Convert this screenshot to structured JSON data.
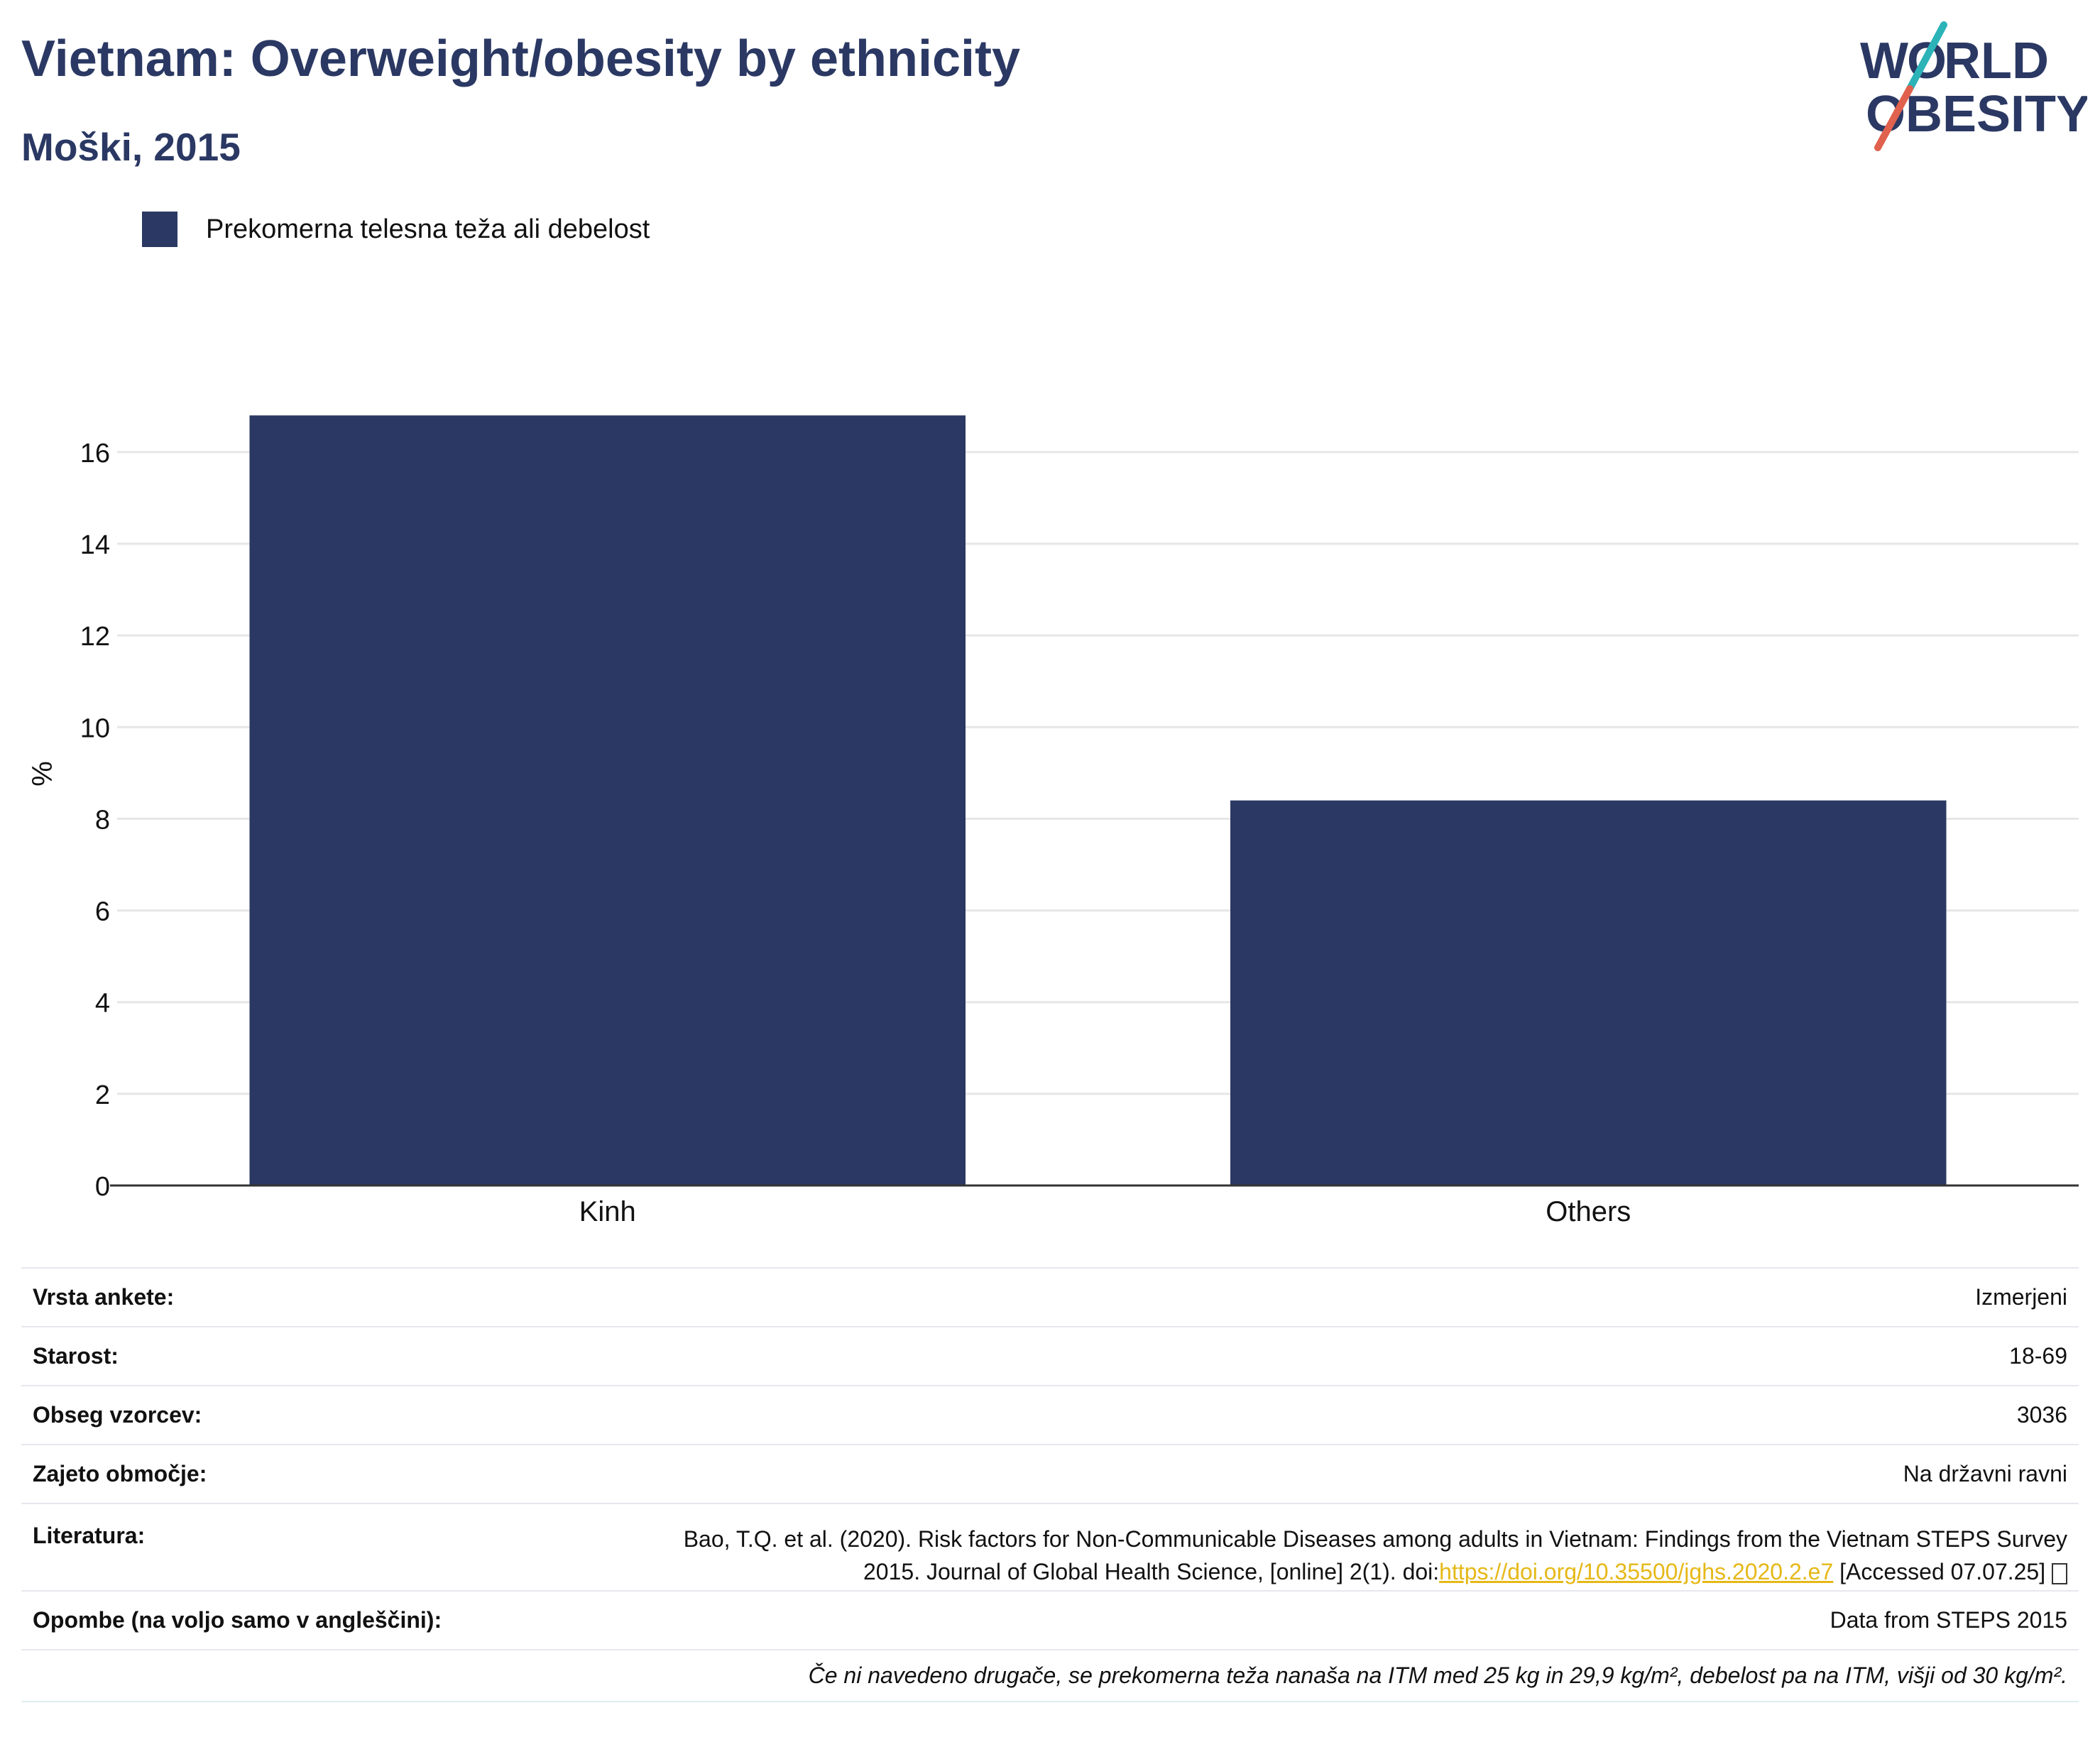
{
  "header": {
    "title": "Vietnam: Overweight/obesity by ethnicity",
    "subtitle": "Moški, 2015",
    "logo_text": "WORLD OBESITY"
  },
  "legend": {
    "label": "Prekomerna telesna teža ali debelost"
  },
  "chart_data": {
    "type": "bar",
    "title": "Vietnam: Overweight/obesity by ethnicity",
    "subtitle": "Moški, 2015",
    "categories": [
      "Kinh",
      "Others"
    ],
    "series": [
      {
        "name": "Prekomerna telesna teža ali debelost",
        "values": [
          16.8,
          8.4
        ]
      }
    ],
    "xlabel": "",
    "ylabel": "%",
    "ylim": [
      0,
      17.5
    ],
    "yticks": [
      0,
      2,
      4,
      6,
      8,
      10,
      12,
      14,
      16
    ],
    "grid": true,
    "legend_position": "top-left",
    "bar_color": "#2a3863"
  },
  "info": {
    "survey_type_label": "Vrsta ankete:",
    "survey_type_value": "Izmerjeni",
    "age_label": "Starost:",
    "age_value": "18-69",
    "sample_label": "Obseg vzorcev:",
    "sample_value": "3036",
    "area_label": "Zajeto območje:",
    "area_value": "Na državni ravni",
    "ref_label": "Literatura:",
    "ref_line1": "Bao, T.Q. et al. (2020). Risk factors for Non-Communicable Diseases among adults in Vietnam: Findings from the Vietnam STEPS Survey",
    "ref_line2_prefix": "2015. Journal of Global Health Science, [online] 2(1). doi:",
    "ref_link": "https://doi.org/10.35500/jghs.2020.2.e7",
    "ref_suffix": " [Accessed 07.07.25] ",
    "notes_label": "Opombe (na voljo samo v angleščini):",
    "notes_value": "Data from STEPS 2015",
    "footnote": "Če ni navedeno drugače, se prekomerna teža nanaša na ITM med 25 kg in 29,9 kg/m², debelost pa na ITM, višji od 30 kg/m²."
  }
}
